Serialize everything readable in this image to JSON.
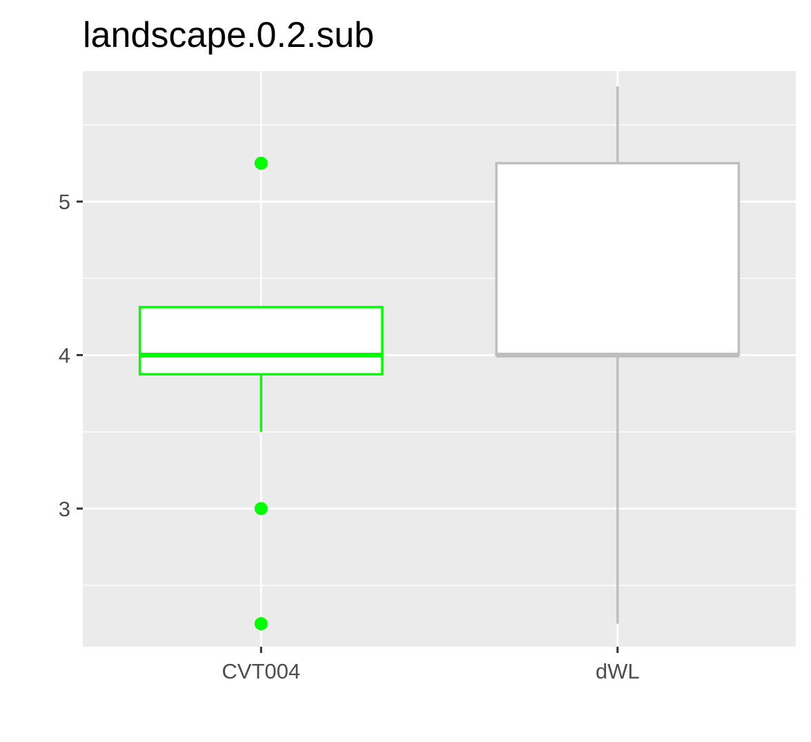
{
  "chart_data": {
    "type": "boxplot",
    "title": "landscape.0.2.sub",
    "xlabel": "",
    "ylabel": "",
    "categories": [
      "CVT004",
      "dWL"
    ],
    "ylim": [
      2.1,
      5.85
    ],
    "yticks": [
      3,
      4,
      5
    ],
    "grid": true,
    "legend": "none",
    "boxes": [
      {
        "category": "CVT004",
        "color": "#00ff00",
        "q1": 3.875,
        "median": 4.0,
        "q3": 4.3125,
        "whisker_low": 3.5,
        "whisker_high": 4.3125,
        "outliers": [
          5.25,
          3.0,
          2.25
        ]
      },
      {
        "category": "dWL",
        "color": "#bebebe",
        "q1": 4.0,
        "median": 4.0,
        "q3": 5.25,
        "whisker_low": 2.25,
        "whisker_high": 5.75,
        "outliers": []
      }
    ],
    "panel_background": "#ebebeb",
    "gridline_color": "#ffffff"
  }
}
